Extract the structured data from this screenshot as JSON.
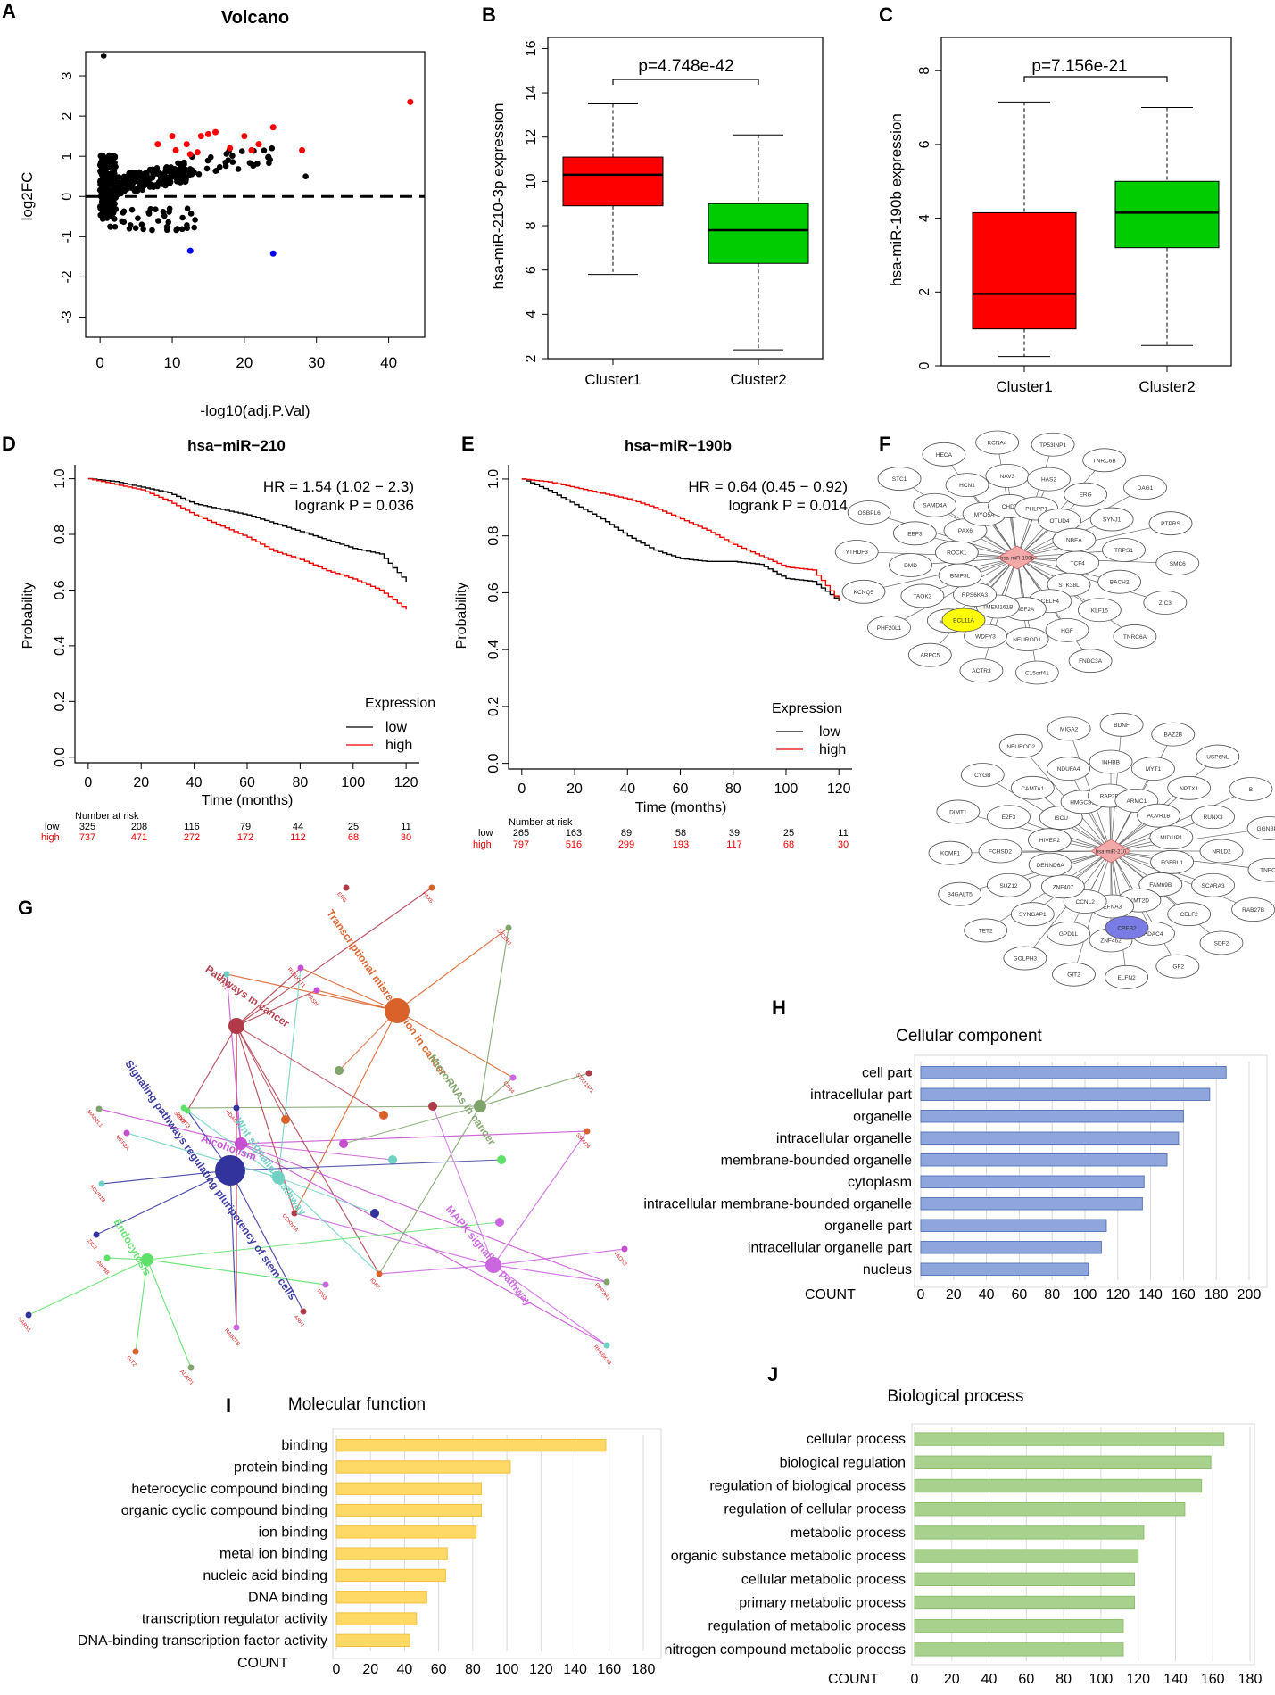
{
  "panel_letters": {
    "A": "A",
    "B": "B",
    "C": "C",
    "D": "D",
    "E": "E",
    "F": "F",
    "G": "G",
    "H": "H",
    "I": "I",
    "J": "J"
  },
  "colors": {
    "red": "#ff0000",
    "green": "#00cc00",
    "blue": "#0000ff",
    "yellow": "#ffff00",
    "bar_blue": "#8ea6dc",
    "bar_yellow": "#ffd966",
    "bar_green": "#a9d18e",
    "node_red": "#f4a9a9",
    "node_blue": "#7b7be6",
    "km_black": "#000000",
    "km_red": "#ee0000"
  },
  "chart_data": [
    {
      "id": "A",
      "type": "scatter",
      "title": "Volcano",
      "xlabel": "-log10(adj.P.Val)",
      "ylabel": "log2FC",
      "xlim": [
        -2,
        45
      ],
      "ylim": [
        -3.5,
        3.6
      ],
      "xticks": [
        "0",
        "10",
        "20",
        "30",
        "40"
      ],
      "yticks": [
        "3",
        "2",
        "1",
        "0",
        "-1",
        "-2",
        "-3"
      ],
      "hline": 0,
      "red_points": [
        [
          8,
          1.3
        ],
        [
          10,
          1.5
        ],
        [
          10.5,
          1.15
        ],
        [
          12,
          1.3
        ],
        [
          14,
          1.5
        ],
        [
          15,
          1.55
        ],
        [
          12.5,
          1.05
        ],
        [
          13.5,
          1.1
        ],
        [
          16,
          1.6
        ],
        [
          18,
          1.2
        ],
        [
          20,
          1.5
        ],
        [
          21,
          1.15
        ],
        [
          22,
          1.3
        ],
        [
          24,
          1.72
        ],
        [
          28,
          1.15
        ],
        [
          43,
          2.35
        ]
      ],
      "blue_points": [
        [
          12.5,
          -1.35
        ],
        [
          24,
          -1.42
        ]
      ],
      "outlier_points": [
        [
          0.5,
          3.5
        ],
        [
          28.5,
          0.5
        ]
      ]
    },
    {
      "id": "B",
      "type": "box",
      "ylabel": "hsa-miR-210-3p expression",
      "ylim": [
        2,
        16.5
      ],
      "yticks": [
        "2",
        "4",
        "6",
        "8",
        "10",
        "12",
        "14",
        "16"
      ],
      "categories": [
        "Cluster1",
        "Cluster2"
      ],
      "boxes": [
        {
          "name": "Cluster1",
          "min": 5.8,
          "q1": 8.9,
          "median": 10.3,
          "q3": 11.1,
          "max": 13.5
        },
        {
          "name": "Cluster2",
          "min": 2.4,
          "q1": 6.3,
          "median": 7.8,
          "q3": 9.0,
          "max": 12.1
        }
      ],
      "pvalue": "p=4.748e-42"
    },
    {
      "id": "C",
      "type": "box",
      "ylabel": "hsa-miR-190b expression",
      "ylim": [
        0,
        8.9
      ],
      "yticks": [
        "0",
        "2",
        "4",
        "6",
        "8"
      ],
      "categories": [
        "Cluster1",
        "Cluster2"
      ],
      "boxes": [
        {
          "name": "Cluster1",
          "min": 0.25,
          "q1": 1.0,
          "median": 1.95,
          "q3": 4.15,
          "max": 7.15
        },
        {
          "name": "Cluster2",
          "min": 0.55,
          "q1": 3.2,
          "median": 4.15,
          "q3": 5.0,
          "max": 7.0
        }
      ],
      "pvalue": "p=7.156e-21"
    },
    {
      "id": "D",
      "type": "line",
      "title": "hsa−miR−210",
      "xlabel": "Time (months)",
      "ylabel": "Probability",
      "xlim": [
        -5,
        125
      ],
      "ylim": [
        -0.02,
        1.05
      ],
      "xticks": [
        "0",
        "20",
        "40",
        "60",
        "80",
        "100",
        "120"
      ],
      "yticks": [
        "0.0",
        "0.2",
        "0.4",
        "0.6",
        "0.8",
        "1.0"
      ],
      "hr": "HR = 1.54 (1.02 − 2.3)",
      "logrank": "logrank P = 0.036",
      "legend_title": "Expression",
      "legend": [
        "low",
        "high"
      ],
      "series": [
        {
          "name": "low",
          "x": [
            0,
            10,
            20,
            30,
            40,
            50,
            60,
            70,
            80,
            90,
            100,
            110,
            120
          ],
          "y": [
            1.0,
            0.99,
            0.97,
            0.95,
            0.91,
            0.89,
            0.87,
            0.84,
            0.81,
            0.78,
            0.75,
            0.73,
            0.63
          ]
        },
        {
          "name": "high",
          "x": [
            0,
            10,
            20,
            30,
            40,
            50,
            60,
            70,
            80,
            90,
            100,
            110,
            120
          ],
          "y": [
            1.0,
            0.98,
            0.96,
            0.92,
            0.87,
            0.83,
            0.79,
            0.74,
            0.71,
            0.67,
            0.64,
            0.6,
            0.53
          ]
        }
      ],
      "risk_title": "Number at risk",
      "risk_low_label": "low",
      "risk_high_label": "high",
      "risk_low": [
        "325",
        "208",
        "116",
        "79",
        "44",
        "25",
        "11"
      ],
      "risk_high": [
        "737",
        "471",
        "272",
        "172",
        "112",
        "68",
        "30"
      ]
    },
    {
      "id": "E",
      "type": "line",
      "title": "hsa−miR−190b",
      "xlabel": "Time (months)",
      "ylabel": "Probability",
      "xlim": [
        -5,
        125
      ],
      "ylim": [
        -0.02,
        1.05
      ],
      "xticks": [
        "0",
        "20",
        "40",
        "60",
        "80",
        "100",
        "120"
      ],
      "yticks": [
        "0.0",
        "0.2",
        "0.4",
        "0.6",
        "0.8",
        "1.0"
      ],
      "hr": "HR = 0.64 (0.45 − 0.92)",
      "logrank": "logrank P = 0.014",
      "legend_title": "Expression",
      "legend": [
        "low",
        "high"
      ],
      "series": [
        {
          "name": "low",
          "x": [
            0,
            10,
            20,
            30,
            40,
            50,
            60,
            70,
            80,
            90,
            100,
            110,
            120
          ],
          "y": [
            1.0,
            0.96,
            0.91,
            0.86,
            0.8,
            0.75,
            0.72,
            0.71,
            0.71,
            0.7,
            0.65,
            0.64,
            0.57
          ]
        },
        {
          "name": "high",
          "x": [
            0,
            10,
            20,
            30,
            40,
            50,
            60,
            70,
            80,
            90,
            100,
            110,
            120
          ],
          "y": [
            1.0,
            0.99,
            0.97,
            0.95,
            0.93,
            0.9,
            0.86,
            0.82,
            0.77,
            0.73,
            0.69,
            0.68,
            0.57
          ]
        }
      ],
      "risk_title": "Number at risk",
      "risk_low_label": "low",
      "risk_high_label": "high",
      "risk_low": [
        "265",
        "163",
        "89",
        "58",
        "39",
        "25",
        "11"
      ],
      "risk_high": [
        "797",
        "516",
        "299",
        "193",
        "117",
        "68",
        "30"
      ]
    },
    {
      "id": "H",
      "type": "bar",
      "orientation": "horizontal",
      "title": "Cellular component",
      "xlabel": "COUNT",
      "xlim": [
        0,
        200
      ],
      "xticks": [
        "0",
        "20",
        "40",
        "60",
        "80",
        "100",
        "120",
        "140",
        "160",
        "180",
        "200"
      ],
      "categories": [
        "nucleus",
        "intracellular organelle part",
        "organelle part",
        "intracellular membrane-bounded organelle",
        "cytoplasm",
        "membrane-bounded organelle",
        "intracellular organelle",
        "organelle",
        "intracellular part",
        "cell part"
      ],
      "values": [
        102,
        110,
        113,
        135,
        136,
        150,
        157,
        160,
        176,
        186
      ]
    },
    {
      "id": "I",
      "type": "bar",
      "orientation": "horizontal",
      "title": "Molecular function",
      "xlabel": "COUNT",
      "xlim": [
        0,
        180
      ],
      "xticks": [
        "0",
        "20",
        "40",
        "60",
        "80",
        "100",
        "120",
        "140",
        "160",
        "180"
      ],
      "categories": [
        "DNA-binding transcription factor activity",
        "transcription regulator activity",
        "DNA binding",
        "nucleic acid binding",
        "metal ion binding",
        "ion binding",
        "organic cyclic compound binding",
        "heterocyclic compound binding",
        "protein binding",
        "binding"
      ],
      "values": [
        43,
        47,
        53,
        64,
        65,
        82,
        85,
        85,
        102,
        158
      ]
    },
    {
      "id": "J",
      "type": "bar",
      "orientation": "horizontal",
      "title": "Biological process",
      "xlabel": "COUNT",
      "xlim": [
        0,
        180
      ],
      "xticks": [
        "0",
        "20",
        "40",
        "60",
        "80",
        "100",
        "120",
        "140",
        "160",
        "180"
      ],
      "categories": [
        "nitrogen compound metabolic process",
        "regulation of metabolic process",
        "primary metabolic process",
        "cellular metabolic process",
        "organic substance metabolic process",
        "metabolic process",
        "regulation of cellular process",
        "regulation of biological process",
        "biological regulation",
        "cellular process"
      ],
      "values": [
        112,
        112,
        118,
        118,
        120,
        123,
        145,
        154,
        159,
        166
      ]
    }
  ],
  "network_f": {
    "top": {
      "hub": "hsa-miR-190b",
      "highlight": "BCL11A",
      "genes": [
        "TCF4",
        "STK38L",
        "CELF4",
        "MEF2A",
        "TMEM161B",
        "RPS6KA3",
        "BNIP3L",
        "ROCK1",
        "PAX6",
        "MYO5A",
        "CHD7",
        "PHLPP1",
        "OTUD4",
        "NBEA",
        "BACH2",
        "KLF15",
        "HGF",
        "NEUROD1",
        "WDFY3",
        "MEF2C",
        "TAOK3",
        "DMD",
        "EBF3",
        "SAMD4A",
        "HCN1",
        "NAV3",
        "HAS2",
        "ERG",
        "SYNJ1",
        "TRPS1",
        "SMC6",
        "ZIC3",
        "TNRC6A",
        "FNDC3A",
        "C15orf41",
        "ACTR3",
        "ARPC5",
        "PHF20L1",
        "KCNQ5",
        "YTHDF3",
        "OSBPL6",
        "STC1",
        "HECA",
        "KCNA4",
        "TP53INP1",
        "TNRC6B",
        "DAG1",
        "PTPRS"
      ]
    },
    "bottom": {
      "hub": "hsa-miR-210",
      "highlight": "CPEB2",
      "genes": [
        "FGFRL1",
        "FAM69B",
        "KMT2D",
        "EFNA3",
        "CCNL2",
        "ZNF407",
        "DENND6A",
        "HIVEP2",
        "ISCU",
        "HMGCS1",
        "RAP2B",
        "ARMC1",
        "ACVR1B",
        "MID1IP1",
        "NR1D2",
        "SCARA3",
        "CELF2",
        "HDAC4",
        "ZNF462",
        "GPD1L",
        "SYNGAP1",
        "SUZ12",
        "FCHSD2",
        "E2F3",
        "CAMTA1",
        "NDUFA4",
        "INHBB",
        "MYT1",
        "NPTX1",
        "RUNX3",
        "TNPO2",
        "RAB27B",
        "SDF2",
        "IGF2",
        "ELFN2",
        "GIT2",
        "GOLPH3",
        "TET2",
        "B4GALT5",
        "KCMF1",
        "DIMT1",
        "CYGB",
        "NEUROD2",
        "MIGA2",
        "BDNF",
        "BAZ2B",
        "USP6NL",
        "B",
        "GGNBP2"
      ]
    }
  },
  "network_g": {
    "pathways": [
      {
        "name": "Pathways in cancer",
        "color": "#b03a48"
      },
      {
        "name": "Transcriptional misregulation in cancer",
        "color": "#d9622b"
      },
      {
        "name": "MicroRNAs in cancer",
        "color": "#7fa36a"
      },
      {
        "name": "Alcoholism",
        "color": "#c64fd1"
      },
      {
        "name": "Wnt signaling pathway",
        "color": "#6fd1c4"
      },
      {
        "name": "Signaling pathways regulating pluripotency of stem cells",
        "color": "#33339e"
      },
      {
        "name": "Endocytosis",
        "color": "#5ee06a"
      },
      {
        "name": "MAPK signaling pathway",
        "color": "#cc66e0"
      }
    ],
    "genes": [
      "ERG",
      "PAX6",
      "DICER1",
      "RUNX1T1",
      "ETV1",
      "HDAC4",
      "SOX2",
      "CD44",
      "STK11IP1",
      "SMAD4",
      "MAD2L1",
      "MEF2A",
      "ACVR1B",
      "ZIC3",
      "DNMT3",
      "TP53",
      "CDKN1A",
      "IGF2",
      "PPP3R1",
      "TAOK3",
      "RPS6KA3",
      "KARS1",
      "INHBB",
      "RAB27B",
      "ARF1",
      "GIT2",
      "ADRP1",
      "FASN"
    ]
  }
}
